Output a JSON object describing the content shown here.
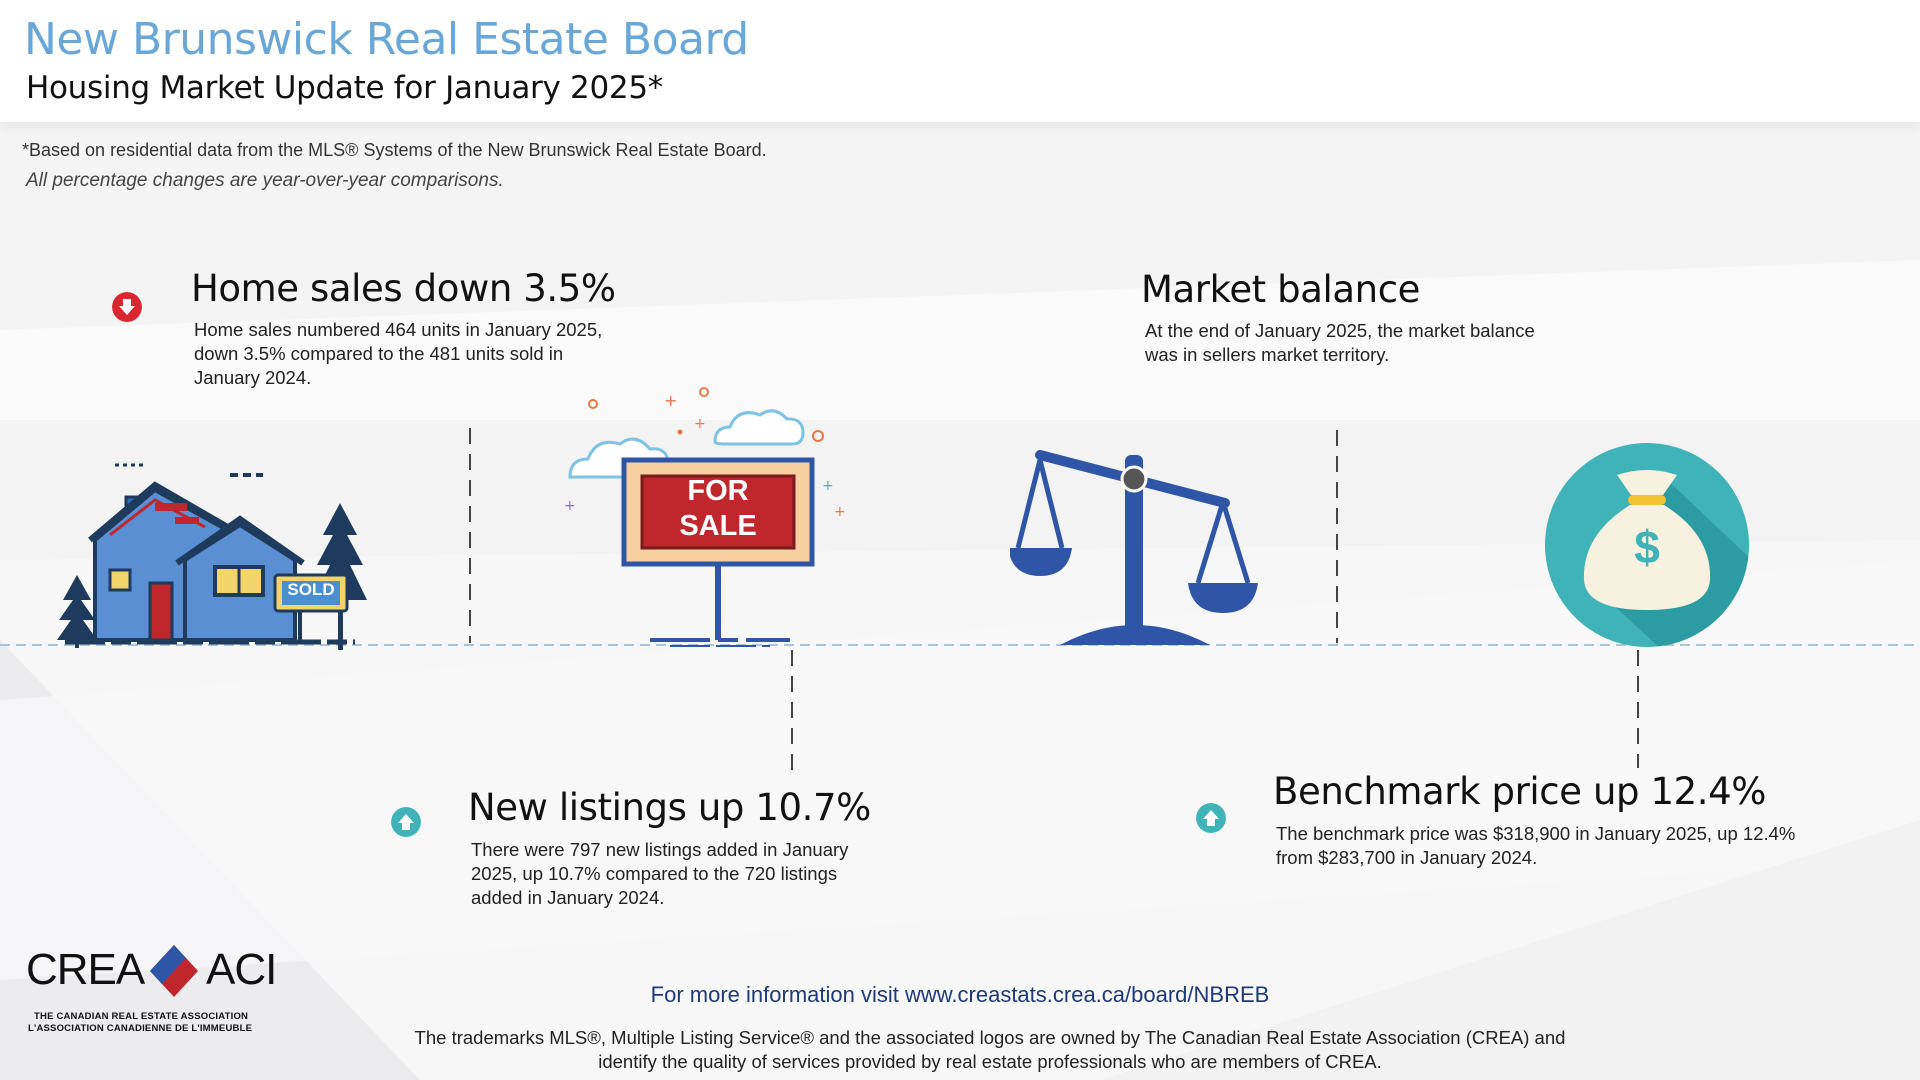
{
  "header": {
    "org_title": "New Brunswick Real Estate Board",
    "subtitle": "Housing Market Update for January 2025*"
  },
  "notes": {
    "basis": "*Based on residential data from the MLS® Systems of the New Brunswick Real Estate Board.",
    "comparison": "All percentage changes are year-over-year comparisons."
  },
  "stats": {
    "home_sales": {
      "title": "Home sales down 3.5%",
      "description": "Home sales numbered 464 units in January 2025, down 3.5% compared to the 481 units sold in January 2024.",
      "direction": "down",
      "icon": "down-arrow-icon",
      "color": "#d7262e"
    },
    "market_balance": {
      "title": "Market balance",
      "description": "At the end of January 2025, the market balance was in sellers market territory."
    },
    "new_listings": {
      "title": "New listings up 10.7%",
      "description": "There were 797 new listings added in January 2025, up 10.7% compared to the 720 listings added in January 2024.",
      "direction": "up",
      "icon": "up-arrow-icon",
      "color": "#3fb3b8"
    },
    "benchmark_price": {
      "title": "Benchmark price up 12.4%",
      "description": "The benchmark price was $318,900 in January 2025, up 12.4% from $283,700 in January 2024.",
      "direction": "up",
      "icon": "up-arrow-icon",
      "color": "#3fb3b8"
    }
  },
  "illustrations": {
    "sold_sign": "SOLD",
    "for_sale_line1": "FOR",
    "for_sale_line2": "SALE",
    "money_symbol": "$"
  },
  "logo": {
    "left": "CREA",
    "right": "ACI",
    "sub_en": "THE CANADIAN REAL ESTATE ASSOCIATION",
    "sub_fr": "L'ASSOCIATION CANADIENNE DE L'IMMEUBLE"
  },
  "footer": {
    "link": "For more information visit www.creastats.crea.ca/board/NBREB",
    "trademark": "The trademarks MLS®, Multiple Listing Service® and the associated logos are owned by The Canadian Real Estate Association (CREA) and identify the quality of services provided by real estate professionals who are members of CREA."
  },
  "colors": {
    "accent_blue": "#6aa7d9",
    "dark_navy": "#1e3a78",
    "scale_blue": "#2f56a6",
    "teal": "#3fb3b8"
  }
}
